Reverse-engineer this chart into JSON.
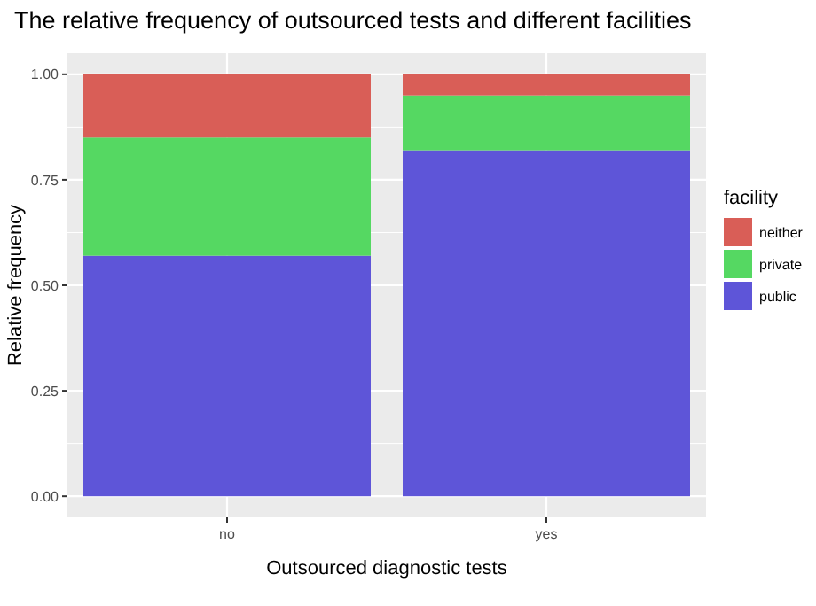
{
  "chart_data": {
    "type": "bar",
    "title": "The relative frequency of outsourced tests and different facilities",
    "xlabel": "Outsourced diagnostic tests",
    "ylabel": "Relative frequency",
    "legend_title": "facility",
    "categories": [
      "no",
      "yes"
    ],
    "stacked": true,
    "series": [
      {
        "name": "public",
        "color": "#5e55d8",
        "values": [
          0.57,
          0.82
        ]
      },
      {
        "name": "private",
        "color": "#55d862",
        "values": [
          0.28,
          0.13
        ]
      },
      {
        "name": "neither",
        "color": "#d95e57",
        "values": [
          0.15,
          0.05
        ]
      }
    ],
    "ylim": [
      -0.05,
      1.05
    ],
    "yticks": [
      {
        "value": 0,
        "label": "0.00"
      },
      {
        "value": 0.25,
        "label": "0.25"
      },
      {
        "value": 0.5,
        "label": "0.50"
      },
      {
        "value": 0.75,
        "label": "0.75"
      },
      {
        "value": 1,
        "label": "1.00"
      }
    ],
    "grid": true,
    "legend": "right"
  }
}
